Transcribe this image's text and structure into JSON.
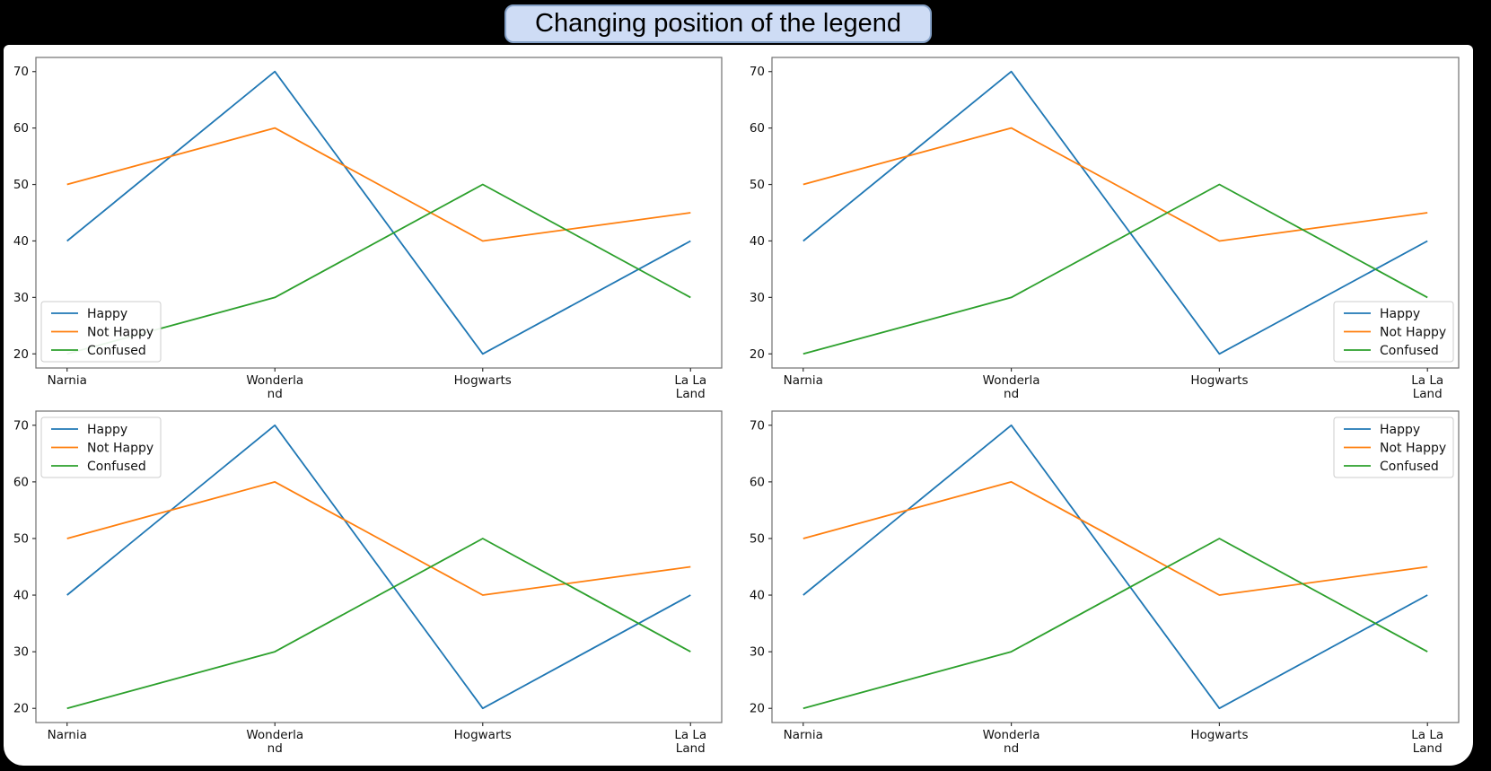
{
  "window": {
    "background": "#000000",
    "panel_background": "#ffffff"
  },
  "title": {
    "text": "Changing position of the legend",
    "background": "#cedcf5",
    "border_color": "#84a0c6",
    "text_color": "#000000"
  },
  "chart_data": {
    "type": "line",
    "categories": [
      "Narnia",
      "Wonderland",
      "Hogwarts",
      "La La Land"
    ],
    "x_tick_labels": [
      "Narnia",
      "Wonderla\nnd",
      "Hogwarts",
      "La La\nLand"
    ],
    "series": [
      {
        "name": "Happy",
        "values": [
          40,
          70,
          20,
          40
        ],
        "color": "#1f77b4"
      },
      {
        "name": "Not Happy",
        "values": [
          50,
          60,
          40,
          45
        ],
        "color": "#ff7f0e"
      },
      {
        "name": "Confused",
        "values": [
          20,
          30,
          50,
          30
        ],
        "color": "#2ca02c"
      }
    ],
    "yticks": [
      20,
      30,
      40,
      50,
      60,
      70
    ],
    "ylim": [
      17.5,
      72.5
    ],
    "grid": false,
    "legend_entries": [
      "Happy",
      "Not Happy",
      "Confused"
    ],
    "subplots": [
      {
        "id": "top-left",
        "legend_position": "lower left"
      },
      {
        "id": "top-right",
        "legend_position": "lower right"
      },
      {
        "id": "bottom-left",
        "legend_position": "upper left"
      },
      {
        "id": "bottom-right",
        "legend_position": "upper right"
      }
    ],
    "spine_color": "#707070",
    "legend_frame_color": "#cccccc"
  }
}
